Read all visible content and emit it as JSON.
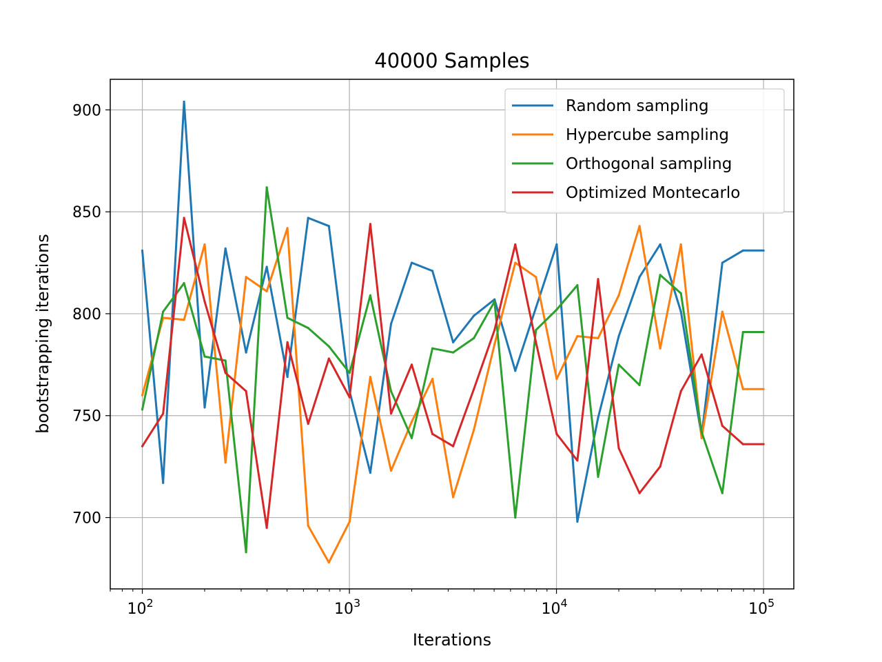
{
  "chart_data": {
    "type": "line",
    "title": "40000 Samples",
    "xlabel": "Iterations",
    "ylabel": "bootstrapping iterations",
    "xscale": "log",
    "xlim": [
      70,
      140000
    ],
    "ylim": [
      665,
      915
    ],
    "grid": true,
    "legend_position": "top-right",
    "x_ticks": [
      {
        "value": 100,
        "base": "10",
        "exp": "2"
      },
      {
        "value": 1000,
        "base": "10",
        "exp": "3"
      },
      {
        "value": 10000,
        "base": "10",
        "exp": "4"
      },
      {
        "value": 100000,
        "base": "10",
        "exp": "5"
      }
    ],
    "y_ticks": [
      700,
      750,
      800,
      850,
      900
    ],
    "x": [
      100,
      126,
      159,
      200,
      252,
      317,
      399,
      502,
      632,
      796,
      1002,
      1262,
      1589,
      2000,
      2518,
      3170,
      3990,
      5024,
      6325,
      7962,
      10024,
      12619,
      15887,
      20000,
      25179,
      31698,
      39905,
      50238,
      63246,
      79621,
      100000
    ],
    "series": [
      {
        "name": "Random sampling",
        "color": "#1f77b4",
        "values": [
          831,
          717,
          904,
          754,
          832,
          781,
          823,
          769,
          847,
          843,
          762,
          722,
          795,
          825,
          821,
          786,
          799,
          807,
          772,
          803,
          834,
          698,
          749,
          789,
          818,
          834,
          801,
          740,
          825,
          831,
          831
        ]
      },
      {
        "name": "Hypercube sampling",
        "color": "#ff7f0e",
        "values": [
          760,
          798,
          797,
          834,
          727,
          818,
          811,
          842,
          696,
          678,
          698,
          769,
          723,
          747,
          768,
          710,
          743,
          785,
          825,
          818,
          768,
          789,
          788,
          809,
          843,
          783,
          834,
          739,
          801,
          763,
          763
        ]
      },
      {
        "name": "Orthogonal sampling",
        "color": "#2ca02c",
        "values": [
          753,
          801,
          815,
          779,
          777,
          683,
          862,
          798,
          793,
          784,
          771,
          809,
          762,
          739,
          783,
          781,
          788,
          806,
          700,
          792,
          802,
          814,
          720,
          775,
          765,
          819,
          810,
          742,
          712,
          791,
          791
        ]
      },
      {
        "name": "Optimized Montecarlo",
        "color": "#d62728",
        "values": [
          735,
          751,
          847,
          806,
          771,
          762,
          695,
          786,
          746,
          778,
          759,
          844,
          751,
          775,
          741,
          735,
          763,
          792,
          834,
          786,
          741,
          728,
          817,
          734,
          712,
          725,
          762,
          780,
          745,
          736,
          736
        ]
      }
    ]
  }
}
